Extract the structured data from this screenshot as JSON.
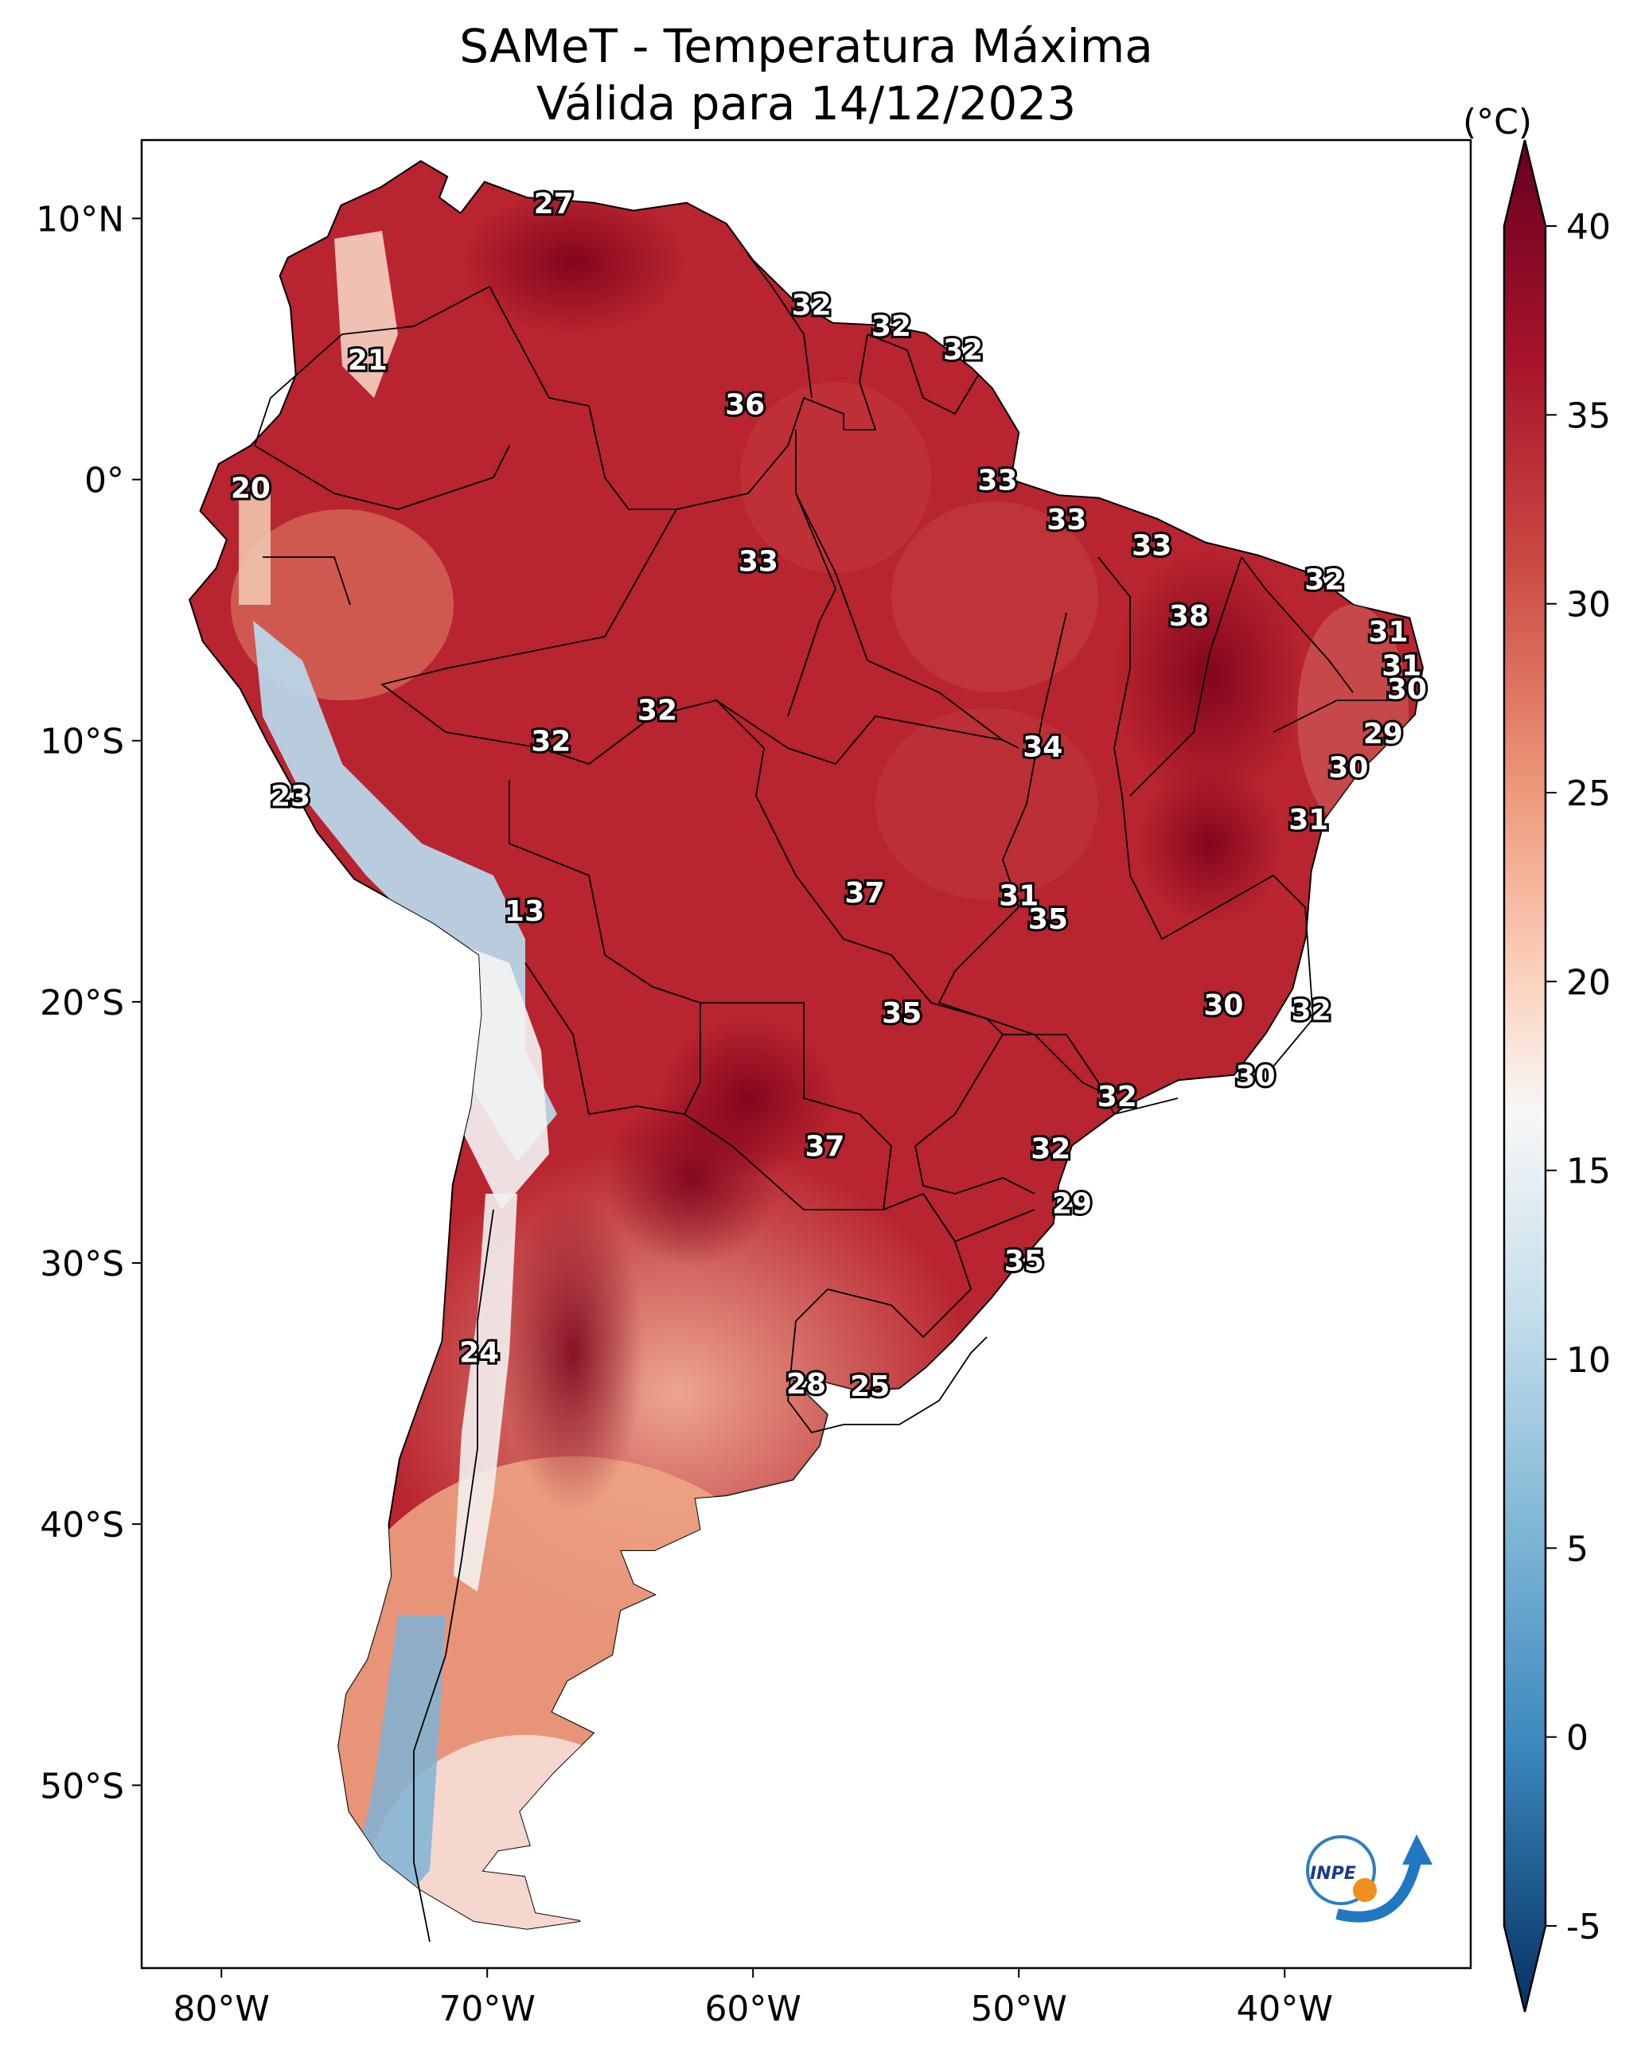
{
  "title_line1": "SAMeT - Temperatura Máxima",
  "title_line2": "Válida para 14/12/2023",
  "map": {
    "lon_range": [
      -83,
      -33
    ],
    "lat_range": [
      -57,
      13
    ],
    "lon_ticks": [
      "80°W",
      "70°W",
      "60°W",
      "50°W",
      "40°W"
    ],
    "lat_ticks": [
      "10°N",
      "0°",
      "10°S",
      "20°S",
      "30°S",
      "40°S",
      "50°S"
    ],
    "labels": [
      {
        "v": "27",
        "lon": -67.5,
        "lat": 10.6
      },
      {
        "v": "32",
        "lon": -57.8,
        "lat": 6.7
      },
      {
        "v": "32",
        "lon": -54.8,
        "lat": 5.9
      },
      {
        "v": "32",
        "lon": -52.1,
        "lat": 5.0
      },
      {
        "v": "21",
        "lon": -74.5,
        "lat": 4.6
      },
      {
        "v": "36",
        "lon": -60.3,
        "lat": 2.9
      },
      {
        "v": "33",
        "lon": -50.8,
        "lat": 0.0
      },
      {
        "v": "20",
        "lon": -78.9,
        "lat": -0.3
      },
      {
        "v": "33",
        "lon": -48.2,
        "lat": -1.5
      },
      {
        "v": "33",
        "lon": -45.0,
        "lat": -2.5
      },
      {
        "v": "33",
        "lon": -59.8,
        "lat": -3.1
      },
      {
        "v": "32",
        "lon": -38.5,
        "lat": -3.8
      },
      {
        "v": "38",
        "lon": -43.6,
        "lat": -5.2
      },
      {
        "v": "31",
        "lon": -36.1,
        "lat": -5.8
      },
      {
        "v": "31",
        "lon": -35.6,
        "lat": -7.1
      },
      {
        "v": "30",
        "lon": -35.4,
        "lat": -8.0
      },
      {
        "v": "32",
        "lon": -63.6,
        "lat": -8.8
      },
      {
        "v": "29",
        "lon": -36.3,
        "lat": -9.7
      },
      {
        "v": "32",
        "lon": -67.6,
        "lat": -10.0
      },
      {
        "v": "34",
        "lon": -49.1,
        "lat": -10.2
      },
      {
        "v": "30",
        "lon": -37.6,
        "lat": -11.0
      },
      {
        "v": "23",
        "lon": -77.4,
        "lat": -12.1
      },
      {
        "v": "31",
        "lon": -39.1,
        "lat": -13.0
      },
      {
        "v": "37",
        "lon": -55.8,
        "lat": -15.8
      },
      {
        "v": "31",
        "lon": -50.0,
        "lat": -15.9
      },
      {
        "v": "13",
        "lon": -68.6,
        "lat": -16.5
      },
      {
        "v": "35",
        "lon": -48.9,
        "lat": -16.8
      },
      {
        "v": "30",
        "lon": -42.3,
        "lat": -20.1
      },
      {
        "v": "32",
        "lon": -39.0,
        "lat": -20.3
      },
      {
        "v": "35",
        "lon": -54.4,
        "lat": -20.4
      },
      {
        "v": "30",
        "lon": -41.1,
        "lat": -22.8
      },
      {
        "v": "32",
        "lon": -46.3,
        "lat": -23.6
      },
      {
        "v": "37",
        "lon": -57.3,
        "lat": -25.5
      },
      {
        "v": "32",
        "lon": -48.8,
        "lat": -25.6
      },
      {
        "v": "29",
        "lon": -48.0,
        "lat": -27.7
      },
      {
        "v": "35",
        "lon": -49.8,
        "lat": -29.9
      },
      {
        "v": "24",
        "lon": -70.3,
        "lat": -33.4
      },
      {
        "v": "28",
        "lon": -58.0,
        "lat": -34.6
      },
      {
        "v": "25",
        "lon": -55.6,
        "lat": -34.7
      }
    ]
  },
  "colorbar": {
    "unit": "(°C)",
    "ticks": [
      "40",
      "35",
      "30",
      "25",
      "20",
      "15",
      "10",
      "5",
      "0",
      "-5"
    ],
    "range": [
      -5,
      40
    ]
  },
  "logo": {
    "text": "INPE"
  }
}
